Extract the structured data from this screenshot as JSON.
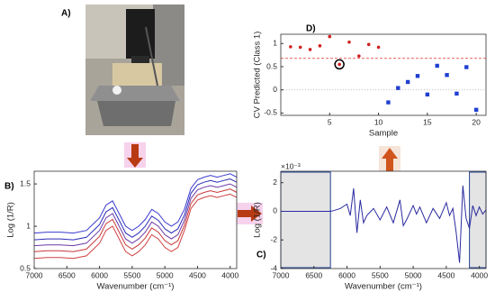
{
  "photo_label": "A)",
  "chart_data": [
    {
      "type": "line",
      "label": "B)",
      "xlabel": "Wavenumber (cm⁻¹)",
      "ylabel": "Log (1/R)",
      "x": [
        7000,
        6800,
        6600,
        6400,
        6200,
        6000,
        5900,
        5800,
        5700,
        5600,
        5500,
        5400,
        5300,
        5200,
        5100,
        5000,
        4900,
        4800,
        4700,
        4600,
        4500,
        4400,
        4300,
        4200,
        4100,
        4000,
        3900
      ],
      "series": [
        {
          "color": "#3a3ad0",
          "values": [
            0.92,
            0.93,
            0.93,
            0.92,
            0.95,
            1.1,
            1.25,
            1.3,
            1.15,
            1.0,
            0.95,
            1.0,
            1.08,
            1.2,
            1.15,
            1.05,
            1.0,
            1.05,
            1.2,
            1.45,
            1.55,
            1.58,
            1.6,
            1.58,
            1.6,
            1.62,
            1.58
          ]
        },
        {
          "color": "#2b2bb8",
          "values": [
            0.84,
            0.85,
            0.85,
            0.84,
            0.87,
            1.02,
            1.17,
            1.22,
            1.07,
            0.92,
            0.87,
            0.92,
            1.0,
            1.12,
            1.07,
            0.97,
            0.92,
            0.97,
            1.13,
            1.39,
            1.49,
            1.52,
            1.54,
            1.52,
            1.54,
            1.56,
            1.52
          ]
        },
        {
          "color": "#6a3aa8",
          "values": [
            0.77,
            0.78,
            0.78,
            0.77,
            0.8,
            0.95,
            1.1,
            1.15,
            1.0,
            0.85,
            0.8,
            0.85,
            0.93,
            1.05,
            1.0,
            0.9,
            0.85,
            0.9,
            1.07,
            1.33,
            1.43,
            1.46,
            1.48,
            1.46,
            1.48,
            1.5,
            1.46
          ]
        },
        {
          "color": "#c83838",
          "values": [
            0.7,
            0.71,
            0.71,
            0.7,
            0.73,
            0.88,
            1.03,
            1.08,
            0.93,
            0.78,
            0.73,
            0.78,
            0.86,
            0.98,
            0.93,
            0.83,
            0.78,
            0.83,
            1.01,
            1.27,
            1.37,
            1.4,
            1.42,
            1.4,
            1.42,
            1.44,
            1.4
          ]
        },
        {
          "color": "#d04040",
          "values": [
            0.62,
            0.63,
            0.63,
            0.62,
            0.65,
            0.8,
            0.95,
            1.0,
            0.85,
            0.7,
            0.65,
            0.7,
            0.78,
            0.9,
            0.85,
            0.75,
            0.7,
            0.75,
            0.95,
            1.21,
            1.31,
            1.34,
            1.36,
            1.34,
            1.36,
            1.38,
            1.34
          ]
        }
      ],
      "xlim": [
        7000,
        3900
      ],
      "ylim": [
        0.5,
        1.65
      ],
      "xticks": [
        7000,
        6500,
        6000,
        5500,
        5000,
        4500,
        4000
      ],
      "yticks": [
        0.5,
        1,
        1.5
      ]
    },
    {
      "type": "line",
      "label": "C)",
      "xlabel": "Wavenumber (cm⁻¹)",
      "ylabel": "Log (1/R)",
      "y_multiplier": "×10⁻³",
      "x": [
        7000,
        6500,
        6250,
        6200,
        6100,
        6000,
        5950,
        5900,
        5850,
        5800,
        5750,
        5700,
        5600,
        5500,
        5400,
        5300,
        5200,
        5150,
        5100,
        5000,
        4950,
        4900,
        4800,
        4700,
        4600,
        4500,
        4450,
        4400,
        4350,
        4300,
        4250,
        4200,
        4150,
        4100,
        4050,
        4000,
        3950,
        3900
      ],
      "series": [
        {
          "color": "#2a2aa0",
          "values": [
            0,
            0,
            0,
            0.05,
            0.2,
            0.5,
            -0.3,
            1.6,
            -1.5,
            0.8,
            -0.8,
            -0.3,
            0.2,
            -0.6,
            0.3,
            -0.8,
            0.8,
            -1.0,
            -0.6,
            0.4,
            -0.2,
            0.3,
            -0.8,
            0.2,
            -0.5,
            0.6,
            -0.3,
            0.2,
            -1.5,
            -3.6,
            1.8,
            -0.5,
            -1.2,
            0.4,
            -0.3,
            0.3,
            -0.2,
            0.1
          ]
        }
      ],
      "shaded_regions": [
        [
          7000,
          6250
        ],
        [
          4150,
          3900
        ]
      ],
      "xlim": [
        7000,
        3900
      ],
      "ylim": [
        -4,
        2.8
      ],
      "xticks": [
        7000,
        6500,
        6000,
        5500,
        5000,
        4500,
        4000
      ],
      "yticks": [
        -4,
        -2,
        0,
        2
      ]
    },
    {
      "type": "scatter",
      "label": "D)",
      "xlabel": "Sample",
      "ylabel": "CV Predicted   (Class 1)",
      "series": [
        {
          "color": "#d02020",
          "marker": "circle",
          "x": [
            1,
            2,
            3,
            4,
            5,
            6,
            7,
            8,
            9,
            10
          ],
          "values": [
            0.93,
            0.92,
            0.87,
            0.95,
            1.15,
            0.55,
            1.03,
            0.73,
            0.98,
            0.92
          ]
        },
        {
          "color": "#1f3fd0",
          "marker": "square",
          "x": [
            11,
            12,
            13,
            14,
            15,
            16,
            17,
            18,
            19,
            20
          ],
          "values": [
            -0.27,
            0.04,
            0.17,
            0.3,
            -0.1,
            0.52,
            0.32,
            -0.08,
            0.49,
            -0.43
          ]
        }
      ],
      "highlight": {
        "series": 0,
        "index": 5
      },
      "reference_lines": [
        {
          "value": 0.68,
          "color": "#e03030",
          "style": "dashed"
        },
        {
          "value": 0,
          "color": "#aaaaaa",
          "style": "dotted"
        }
      ],
      "xlim": [
        0,
        21
      ],
      "ylim": [
        -0.55,
        1.2
      ],
      "xticks": [
        5,
        10,
        15,
        20
      ],
      "yticks": [
        -0.5,
        0,
        0.5,
        1
      ]
    }
  ]
}
